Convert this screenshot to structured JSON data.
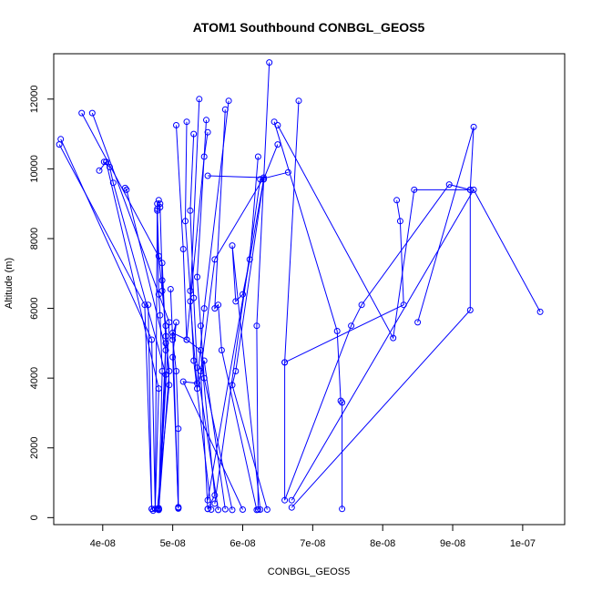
{
  "chart_data": {
    "type": "line",
    "title": "ATOM1 Southbound CONBGL_GEOS5",
    "xlabel": "CONBGL_GEOS5",
    "ylabel": "Altitude (m)",
    "xlim": [
      3.3e-08,
      1.06e-07
    ],
    "ylim": [
      -200,
      13300
    ],
    "x_ticks": [
      4e-08,
      5e-08,
      6e-08,
      7e-08,
      8e-08,
      9e-08,
      1e-07
    ],
    "x_tick_labels": [
      "4e-08",
      "5e-08",
      "6e-08",
      "7e-08",
      "8e-08",
      "9e-08",
      "1e-07"
    ],
    "y_ticks": [
      0,
      2000,
      4000,
      6000,
      8000,
      10000,
      12000
    ],
    "y_tick_labels": [
      "0",
      "2000",
      "4000",
      "6000",
      "8000",
      "10000",
      "12000"
    ],
    "grid": false,
    "line_color": "#0000ff",
    "marker": "open-circle",
    "profiles": [
      {
        "points": [
          [
            3.4e-08,
            10850
          ],
          [
            4.7e-08,
            5100
          ],
          [
            4.75e-08,
            250
          ],
          [
            4.78e-08,
            9000
          ]
        ]
      },
      {
        "points": [
          [
            3.38e-08,
            10700
          ],
          [
            4.6e-08,
            6100
          ],
          [
            4.7e-08,
            250
          ]
        ]
      },
      {
        "points": [
          [
            3.7e-08,
            11600
          ],
          [
            4.85e-08,
            7300
          ],
          [
            4.9e-08,
            5000
          ],
          [
            4.8e-08,
            250
          ]
        ]
      },
      {
        "points": [
          [
            3.85e-08,
            11600
          ],
          [
            4.95e-08,
            5600
          ],
          [
            4.8e-08,
            230
          ]
        ]
      },
      {
        "points": [
          [
            3.95e-08,
            9950
          ],
          [
            4.05e-08,
            10200
          ],
          [
            4.8e-08,
            3700
          ],
          [
            4.75e-08,
            250
          ]
        ]
      },
      {
        "points": [
          [
            4.02e-08,
            10200
          ],
          [
            4.1e-08,
            10050
          ],
          [
            4.15e-08,
            9600
          ],
          [
            4.9e-08,
            4100
          ],
          [
            4.8e-08,
            250
          ]
        ]
      },
      {
        "points": [
          [
            4.32e-08,
            9450
          ],
          [
            4.34e-08,
            9400
          ],
          [
            4.9e-08,
            4800
          ],
          [
            4.8e-08,
            270
          ]
        ]
      },
      {
        "points": [
          [
            4.8e-08,
            9100
          ],
          [
            4.78e-08,
            8850
          ],
          [
            4.8e-08,
            6400
          ],
          [
            4.82e-08,
            5800
          ],
          [
            4.85e-08,
            4200
          ],
          [
            4.8e-08,
            250
          ]
        ]
      },
      {
        "points": [
          [
            4.82e-08,
            9000
          ],
          [
            4.82e-08,
            8900
          ],
          [
            4.85e-08,
            6800
          ],
          [
            4.9e-08,
            5200
          ],
          [
            4.95e-08,
            4200
          ],
          [
            4.8e-08,
            230
          ]
        ]
      },
      {
        "points": [
          [
            4.78e-08,
            8800
          ],
          [
            4.8e-08,
            7500
          ],
          [
            4.85e-08,
            6500
          ],
          [
            4.9e-08,
            5500
          ],
          [
            4.95e-08,
            3800
          ],
          [
            4.78e-08,
            250
          ]
        ]
      },
      {
        "points": [
          [
            4.97e-08,
            6550
          ],
          [
            5e-08,
            5100
          ],
          [
            5.05e-08,
            4200
          ],
          [
            5.08e-08,
            2550
          ],
          [
            5.08e-08,
            280
          ]
        ]
      },
      {
        "points": [
          [
            5.05e-08,
            11250
          ],
          [
            5.15e-08,
            7700
          ],
          [
            5.2e-08,
            5100
          ],
          [
            5e-08,
            5300
          ],
          [
            5.08e-08,
            260
          ]
        ]
      },
      {
        "points": [
          [
            5.2e-08,
            11350
          ],
          [
            5.18e-08,
            8500
          ],
          [
            5.25e-08,
            6500
          ],
          [
            5.3e-08,
            4500
          ],
          [
            5.55e-08,
            230
          ]
        ]
      },
      {
        "points": [
          [
            5.3e-08,
            11000
          ],
          [
            5.25e-08,
            8800
          ],
          [
            5.3e-08,
            6300
          ],
          [
            5.35e-08,
            4300
          ],
          [
            5.65e-08,
            220
          ]
        ]
      },
      {
        "points": [
          [
            5.38e-08,
            12000
          ],
          [
            5.25e-08,
            6200
          ],
          [
            5.35e-08,
            3700
          ],
          [
            5.45e-08,
            4500
          ],
          [
            5.75e-08,
            240
          ]
        ]
      },
      {
        "points": [
          [
            5.48e-08,
            11400
          ],
          [
            5.35e-08,
            6900
          ],
          [
            5.4e-08,
            5500
          ],
          [
            5.45e-08,
            4000
          ],
          [
            5.85e-08,
            220
          ]
        ]
      },
      {
        "points": [
          [
            5.5e-08,
            11050
          ],
          [
            5.45e-08,
            10350
          ],
          [
            5.2e-08,
            5100
          ],
          [
            5.4e-08,
            4800
          ],
          [
            5.6e-08,
            640
          ],
          [
            5.5e-08,
            250
          ]
        ]
      },
      {
        "points": [
          [
            5.5e-08,
            9800
          ],
          [
            6.3e-08,
            9750
          ],
          [
            5.6e-08,
            7400
          ],
          [
            5.4e-08,
            4200
          ],
          [
            5.5e-08,
            250
          ]
        ]
      },
      {
        "points": [
          [
            5.8e-08,
            11950
          ],
          [
            5.45e-08,
            6000
          ],
          [
            5.35e-08,
            3850
          ],
          [
            5.15e-08,
            3900
          ],
          [
            6e-08,
            230
          ]
        ]
      },
      {
        "points": [
          [
            5.75e-08,
            11700
          ],
          [
            5.6e-08,
            6000
          ],
          [
            5.65e-08,
            6100
          ],
          [
            5.7e-08,
            4800
          ],
          [
            6.2e-08,
            220
          ]
        ]
      },
      {
        "points": [
          [
            6.22e-08,
            10350
          ],
          [
            6.1e-08,
            7400
          ],
          [
            6e-08,
            6400
          ],
          [
            5.9e-08,
            6200
          ],
          [
            5.85e-08,
            7800
          ],
          [
            6.25e-08,
            230
          ]
        ]
      },
      {
        "points": [
          [
            6.3e-08,
            9700
          ],
          [
            5.9e-08,
            4200
          ],
          [
            5.85e-08,
            3800
          ],
          [
            6.35e-08,
            230
          ]
        ]
      },
      {
        "points": [
          [
            6.38e-08,
            13050
          ],
          [
            6.2e-08,
            5500
          ],
          [
            6.22e-08,
            230
          ]
        ]
      },
      {
        "points": [
          [
            6.45e-08,
            11350
          ],
          [
            7.35e-08,
            5350
          ],
          [
            7.4e-08,
            3350
          ],
          [
            7.42e-08,
            3300
          ],
          [
            7.42e-08,
            250
          ]
        ]
      },
      {
        "points": [
          [
            6.5e-08,
            10700
          ],
          [
            6.3e-08,
            9700
          ],
          [
            5.5e-08,
            500
          ]
        ]
      },
      {
        "points": [
          [
            6.65e-08,
            9900
          ],
          [
            6.25e-08,
            9700
          ],
          [
            5.6e-08,
            400
          ]
        ]
      },
      {
        "points": [
          [
            6.8e-08,
            11950
          ],
          [
            6.6e-08,
            4450
          ],
          [
            6.6e-08,
            500
          ],
          [
            7.55e-08,
            5500
          ],
          [
            7.7e-08,
            6100
          ],
          [
            8.95e-08,
            9550
          ],
          [
            9.25e-08,
            9400
          ],
          [
            9.3e-08,
            11200
          ],
          [
            8.5e-08,
            5600
          ]
        ]
      },
      {
        "points": [
          [
            6.5e-08,
            11250
          ],
          [
            8.15e-08,
            5150
          ],
          [
            8.45e-08,
            9400
          ],
          [
            9.25e-08,
            9400
          ],
          [
            9.25e-08,
            5950
          ],
          [
            6.7e-08,
            290
          ]
        ]
      },
      {
        "points": [
          [
            8.2e-08,
            9100
          ],
          [
            8.25e-08,
            8500
          ],
          [
            8.3e-08,
            6100
          ],
          [
            6.6e-08,
            4450
          ]
        ]
      },
      {
        "points": [
          [
            1.025e-07,
            5900
          ],
          [
            9.3e-08,
            9400
          ],
          [
            6.7e-08,
            500
          ]
        ]
      },
      {
        "points": [
          [
            4.65e-08,
            6100
          ],
          [
            4.7e-08,
            250
          ],
          [
            4.72e-08,
            200
          ],
          [
            4.8e-08,
            220
          ]
        ]
      },
      {
        "points": [
          [
            5e-08,
            5200
          ],
          [
            5.05e-08,
            5600
          ],
          [
            5e-08,
            4600
          ],
          [
            5.08e-08,
            300
          ]
        ]
      }
    ]
  }
}
